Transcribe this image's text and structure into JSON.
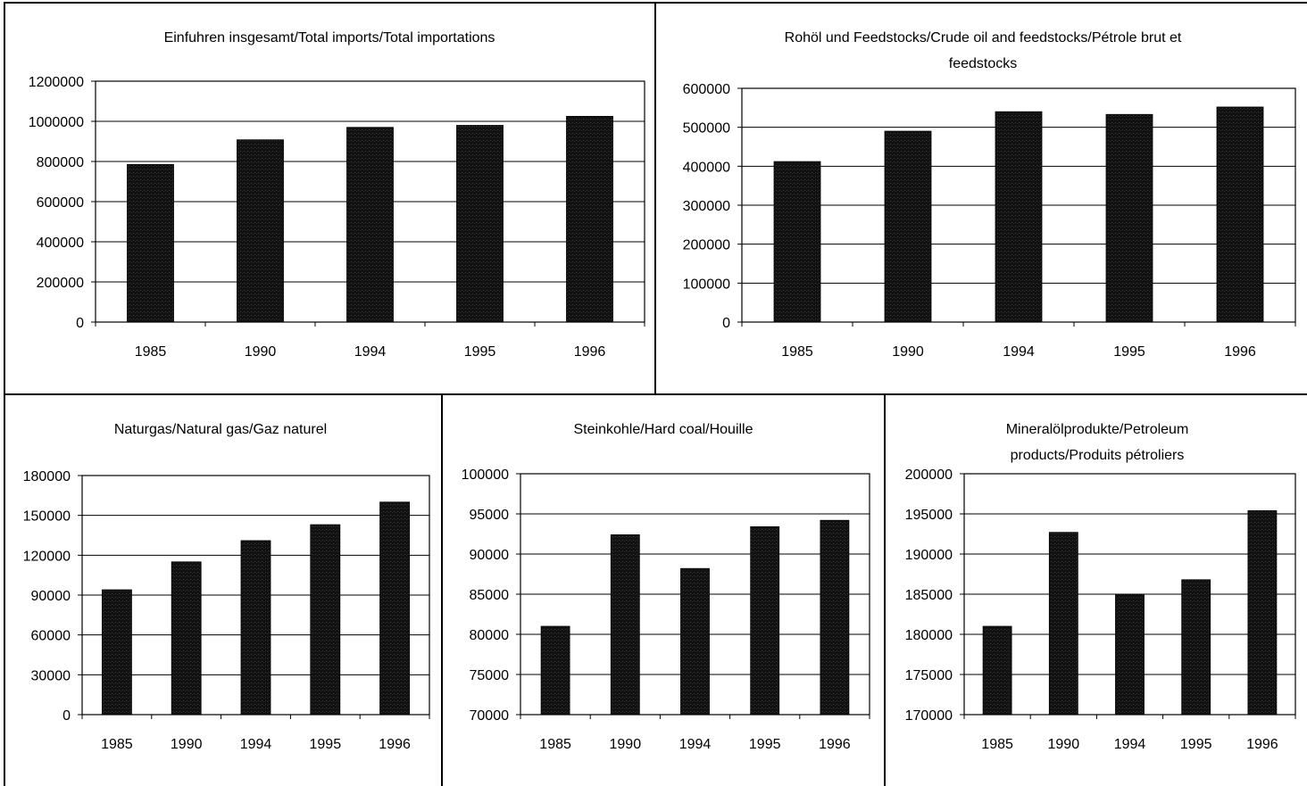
{
  "chart_data": [
    {
      "type": "bar",
      "title_lines": [
        "Einfuhren insgesamt/Total imports/Total importations"
      ],
      "categories": [
        "1985",
        "1990",
        "1994",
        "1995",
        "1996"
      ],
      "values": [
        785000,
        908000,
        970000,
        980000,
        1025000
      ],
      "ylim": [
        0,
        1200000
      ],
      "yticks": [
        "0",
        "200000",
        "400000",
        "600000",
        "800000",
        "1000000",
        "1200000"
      ],
      "grid": true,
      "legend": "none"
    },
    {
      "type": "bar",
      "title_lines": [
        "Rohöl und Feedstocks/Crude oil and feedstocks/Pétrole brut et",
        "feedstocks"
      ],
      "categories": [
        "1985",
        "1990",
        "1994",
        "1995",
        "1996"
      ],
      "values": [
        412000,
        490000,
        540000,
        533000,
        552000
      ],
      "ylim": [
        0,
        600000
      ],
      "yticks": [
        "0",
        "100000",
        "200000",
        "300000",
        "400000",
        "500000",
        "600000"
      ],
      "grid": true,
      "legend": "none"
    },
    {
      "type": "bar",
      "title_lines": [
        "Naturgas/Natural gas/Gaz naturel"
      ],
      "categories": [
        "1985",
        "1990",
        "1994",
        "1995",
        "1996"
      ],
      "values": [
        94000,
        115000,
        131000,
        143000,
        160000
      ],
      "ylim": [
        0,
        180000
      ],
      "yticks": [
        "0",
        "30000",
        "60000",
        "90000",
        "120000",
        "150000",
        "180000"
      ],
      "grid": true,
      "legend": "none"
    },
    {
      "type": "bar",
      "title_lines": [
        "Steinkohle/Hard coal/Houille"
      ],
      "categories": [
        "1985",
        "1990",
        "1994",
        "1995",
        "1996"
      ],
      "values": [
        81000,
        92400,
        88200,
        93400,
        94200
      ],
      "ylim": [
        70000,
        100000
      ],
      "yticks": [
        "70000",
        "75000",
        "80000",
        "85000",
        "90000",
        "95000",
        "100000"
      ],
      "grid": true,
      "legend": "none"
    },
    {
      "type": "bar",
      "title_lines": [
        "Mineralölprodukte/Petroleum",
        "products/Produits pétroliers"
      ],
      "categories": [
        "1985",
        "1990",
        "1994",
        "1995",
        "1996"
      ],
      "values": [
        181000,
        192700,
        185000,
        186800,
        195400
      ],
      "ylim": [
        170000,
        200000
      ],
      "yticks": [
        "170000",
        "175000",
        "180000",
        "185000",
        "190000",
        "195000",
        "200000"
      ],
      "grid": true,
      "legend": "none"
    }
  ]
}
